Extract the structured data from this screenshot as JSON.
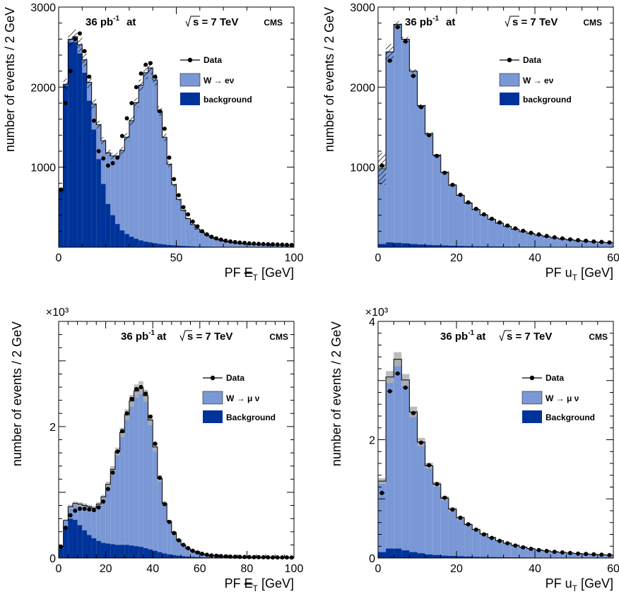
{
  "colors": {
    "signal": "#7b98d6",
    "background": "#003399",
    "data": "#000000",
    "uncertainty_hatch": "#000000",
    "mc_total_band": "#b0b0b0"
  },
  "chart_data": [
    {
      "id": "top-left",
      "type": "bar",
      "label_lumi": "36 pb",
      "label_lumi_sup": "-1",
      "label_at": "at",
      "label_energy": "s = 7 TeV",
      "label_experiment": "CMS",
      "xlabel_prefix": "PF ",
      "xlabel_symbol": "E",
      "xlabel_sub": "T",
      "xlabel_suffix": " [GeV]",
      "ylabel": "number of events / 2 GeV",
      "xlim": [
        0,
        100
      ],
      "ylim": [
        0,
        3000
      ],
      "x_ticks": [
        0,
        50,
        100
      ],
      "y_ticks": [
        1000,
        2000,
        3000
      ],
      "y_multiplier": "",
      "uncertainty_style": "hatch",
      "legend": {
        "data": "Data",
        "signal": "W → eν",
        "background": "background"
      },
      "bin_width": 2,
      "series": [
        {
          "name": "Data",
          "style": "points",
          "values": [
            720,
            1800,
            2200,
            2600,
            2670,
            2450,
            2130,
            1580,
            1200,
            1110,
            1020,
            1050,
            1120,
            1390,
            1610,
            1800,
            2000,
            2170,
            2280,
            2300,
            2130,
            1700,
            1480,
            1120,
            850,
            650,
            500,
            410,
            320,
            260,
            200,
            160,
            130,
            110,
            95,
            82,
            72,
            64,
            58,
            54,
            48,
            45,
            42,
            40,
            38,
            36,
            34,
            32,
            30,
            28
          ]
        },
        {
          "name": "W → eν",
          "style": "stack",
          "values": [
            3,
            16,
            38,
            70,
            110,
            160,
            230,
            320,
            430,
            540,
            640,
            740,
            850,
            1000,
            1210,
            1450,
            1700,
            1940,
            2110,
            2180,
            2040,
            1660,
            1340,
            1010,
            760,
            580,
            445,
            345,
            273,
            219,
            177,
            144,
            119,
            98,
            82,
            69,
            59,
            51,
            45,
            40,
            36,
            33,
            31,
            29,
            27,
            26,
            25,
            24,
            23,
            22
          ]
        },
        {
          "name": "background",
          "style": "stack",
          "values": [
            705,
            2020,
            2560,
            2560,
            2420,
            2180,
            1830,
            1470,
            1100,
            790,
            540,
            400,
            290,
            210,
            165,
            130,
            105,
            85,
            70,
            60,
            50,
            41,
            34,
            28,
            23,
            19,
            16,
            13,
            11,
            9,
            8,
            7,
            6,
            5,
            5,
            4,
            4,
            3,
            3,
            3,
            2,
            2,
            2,
            2,
            2,
            2,
            1,
            1,
            1,
            1
          ]
        },
        {
          "name": "MC uncertainty",
          "style": "band",
          "values": [
            35,
            70,
            90,
            90,
            90,
            80,
            70,
            60,
            50,
            45,
            40,
            40,
            40,
            45,
            50,
            55,
            60,
            70,
            80,
            80,
            70,
            60,
            45,
            35,
            25,
            20,
            15,
            12,
            10,
            8,
            6,
            5,
            4,
            3,
            3,
            3,
            2,
            2,
            2,
            2,
            2,
            2,
            2,
            2,
            2,
            2,
            2,
            2,
            2,
            2
          ]
        }
      ]
    },
    {
      "id": "top-right",
      "type": "bar",
      "label_lumi": "36 pb",
      "label_lumi_sup": "-1",
      "label_at": "at",
      "label_energy": "s = 7 TeV",
      "label_experiment": "CMS",
      "xlabel_prefix": "PF u",
      "xlabel_symbol": "",
      "xlabel_sub": "T",
      "xlabel_suffix": " [GeV]",
      "ylabel": "number of events / 2 GeV",
      "xlim": [
        0,
        60
      ],
      "ylim": [
        0,
        3000
      ],
      "x_ticks": [
        0,
        20,
        40,
        60
      ],
      "y_ticks": [
        1000,
        2000,
        3000
      ],
      "y_multiplier": "",
      "uncertainty_style": "hatch",
      "legend": {
        "data": "Data",
        "signal": "W → eν",
        "background": "background"
      },
      "bin_width": 2,
      "series": [
        {
          "name": "Data",
          "style": "points",
          "values": [
            1020,
            2330,
            2750,
            2570,
            2140,
            1750,
            1400,
            1140,
            930,
            780,
            655,
            560,
            480,
            410,
            355,
            310,
            270,
            235,
            205,
            180,
            160,
            140,
            124,
            110,
            98,
            88,
            80,
            72,
            66,
            60
          ]
        },
        {
          "name": "W → eν",
          "style": "stack",
          "values": [
            940,
            2380,
            2730,
            2550,
            2160,
            1735,
            1390,
            1125,
            915,
            758,
            633,
            537,
            458,
            393,
            338,
            291,
            251,
            217,
            188,
            164,
            144,
            127,
            112,
            99,
            88,
            79,
            71,
            64,
            58,
            53
          ]
        },
        {
          "name": "background",
          "style": "stack",
          "values": [
            40,
            60,
            55,
            48,
            40,
            34,
            29,
            25,
            22,
            19,
            16,
            14,
            12,
            11,
            10,
            9,
            8,
            7,
            6,
            6,
            5,
            5,
            4,
            4,
            4,
            3,
            3,
            3,
            3,
            3
          ]
        },
        {
          "name": "MC uncertainty",
          "style": "band",
          "values": [
            200,
            100,
            40,
            30,
            25,
            20,
            18,
            15,
            12,
            10,
            8,
            7,
            6,
            5,
            5,
            4,
            4,
            3,
            3,
            3,
            3,
            2,
            2,
            2,
            2,
            2,
            2,
            2,
            2,
            2
          ]
        }
      ]
    },
    {
      "id": "bottom-left",
      "type": "bar",
      "label_lumi": "36 pb",
      "label_lumi_sup": "-1",
      "label_at": "at",
      "label_energy": "s = 7 TeV",
      "label_experiment": "CMS",
      "xlabel_prefix": "PF ",
      "xlabel_symbol": "E",
      "xlabel_sub": "T",
      "xlabel_suffix": " [GeV]",
      "ylabel": "number of events / 2 GeV",
      "xlim": [
        0,
        100
      ],
      "ylim": [
        0,
        3.6
      ],
      "x_ticks": [
        0,
        20,
        40,
        60,
        80,
        100
      ],
      "y_ticks": [
        0,
        2
      ],
      "y_multiplier": "×10³",
      "uncertainty_style": "band",
      "legend": {
        "data": "Data",
        "signal": "W → μ ν",
        "background": "Background"
      },
      "bin_width": 2,
      "series": [
        {
          "name": "Data",
          "style": "points",
          "values": [
            0.17,
            0.46,
            0.65,
            0.72,
            0.75,
            0.75,
            0.74,
            0.73,
            0.77,
            0.86,
            1.05,
            1.3,
            1.62,
            1.93,
            2.2,
            2.42,
            2.57,
            2.6,
            2.5,
            2.15,
            1.74,
            1.22,
            0.82,
            0.55,
            0.38,
            0.27,
            0.2,
            0.15,
            0.11,
            0.085,
            0.065,
            0.05,
            0.04,
            0.035,
            0.03,
            0.025,
            0.022,
            0.02,
            0.018,
            0.016,
            0.015,
            0.014,
            0.013,
            0.012,
            0.011,
            0.01,
            0.01,
            0.009,
            0.009,
            0.008
          ]
        },
        {
          "name": "W → μ ν",
          "style": "stack",
          "values": [
            0.02,
            0.09,
            0.18,
            0.25,
            0.32,
            0.38,
            0.43,
            0.46,
            0.56,
            0.7,
            0.9,
            1.14,
            1.42,
            1.71,
            1.98,
            2.2,
            2.36,
            2.42,
            2.32,
            1.97,
            1.58,
            1.12,
            0.76,
            0.5,
            0.34,
            0.24,
            0.17,
            0.12,
            0.09,
            0.065,
            0.05,
            0.04,
            0.032,
            0.026,
            0.022,
            0.018,
            0.016,
            0.014,
            0.012,
            0.011,
            0.01,
            0.009,
            0.008,
            0.007,
            0.007,
            0.006,
            0.006,
            0.005,
            0.005,
            0.005
          ]
        },
        {
          "name": "Background",
          "style": "stack",
          "values": [
            0.15,
            0.48,
            0.6,
            0.58,
            0.5,
            0.42,
            0.35,
            0.3,
            0.26,
            0.23,
            0.22,
            0.21,
            0.2,
            0.2,
            0.2,
            0.19,
            0.18,
            0.17,
            0.15,
            0.13,
            0.11,
            0.09,
            0.07,
            0.055,
            0.045,
            0.035,
            0.028,
            0.022,
            0.018,
            0.014,
            0.011,
            0.009,
            0.007,
            0.006,
            0.005,
            0.004,
            0.004,
            0.003,
            0.003,
            0.003,
            0.002,
            0.002,
            0.002,
            0.002,
            0.002,
            0.002,
            0.002,
            0.001,
            0.001,
            0.001
          ]
        },
        {
          "name": "MC uncertainty",
          "style": "band",
          "values": [
            0.01,
            0.02,
            0.03,
            0.03,
            0.03,
            0.03,
            0.03,
            0.03,
            0.03,
            0.03,
            0.04,
            0.05,
            0.06,
            0.07,
            0.08,
            0.09,
            0.1,
            0.1,
            0.09,
            0.08,
            0.07,
            0.05,
            0.035,
            0.025,
            0.02,
            0.015,
            0.01,
            0.008,
            0.006,
            0.005,
            0.004,
            0.003,
            0.003,
            0.002,
            0.002,
            0.002,
            0.002,
            0.002,
            0.002,
            0.002,
            0.002,
            0.002,
            0.002,
            0.002,
            0.002,
            0.002,
            0.002,
            0.002,
            0.002,
            0.002
          ]
        }
      ]
    },
    {
      "id": "bottom-right",
      "type": "bar",
      "label_lumi": "36 pb",
      "label_lumi_sup": "-1",
      "label_at": "at",
      "label_energy": "s = 7 TeV",
      "label_experiment": "CMS",
      "xlabel_prefix": "PF u",
      "xlabel_symbol": "",
      "xlabel_sub": "T",
      "xlabel_suffix": " [GeV]",
      "ylabel": "number of events / 2 GeV",
      "xlim": [
        0,
        60
      ],
      "ylim": [
        0,
        4
      ],
      "x_ticks": [
        0,
        20,
        40,
        60
      ],
      "y_ticks": [
        0,
        2,
        4
      ],
      "y_multiplier": "×10³",
      "uncertainty_style": "band",
      "legend": {
        "data": "Data",
        "signal": "W → μ ν",
        "background": "Background"
      },
      "bin_width": 2,
      "series": [
        {
          "name": "Data",
          "style": "points",
          "values": [
            1.1,
            2.82,
            3.12,
            2.88,
            2.45,
            1.95,
            1.57,
            1.25,
            1.02,
            0.82,
            0.68,
            0.57,
            0.48,
            0.4,
            0.34,
            0.29,
            0.25,
            0.21,
            0.18,
            0.155,
            0.135,
            0.12,
            0.105,
            0.095,
            0.085,
            0.075,
            0.068,
            0.062,
            0.057,
            0.05
          ]
        },
        {
          "name": "W → μ ν",
          "style": "stack",
          "values": [
            1.2,
            2.9,
            3.2,
            2.88,
            2.37,
            1.88,
            1.5,
            1.2,
            0.97,
            0.79,
            0.65,
            0.54,
            0.46,
            0.39,
            0.33,
            0.28,
            0.24,
            0.205,
            0.175,
            0.15,
            0.13,
            0.115,
            0.1,
            0.09,
            0.08,
            0.072,
            0.065,
            0.058,
            0.052,
            0.047
          ]
        },
        {
          "name": "Background",
          "style": "stack",
          "values": [
            0.1,
            0.16,
            0.16,
            0.13,
            0.1,
            0.08,
            0.06,
            0.05,
            0.04,
            0.035,
            0.03,
            0.025,
            0.02,
            0.018,
            0.016,
            0.014,
            0.012,
            0.011,
            0.01,
            0.009,
            0.008,
            0.007,
            0.006,
            0.006,
            0.005,
            0.005,
            0.004,
            0.004,
            0.004,
            0.004
          ]
        },
        {
          "name": "MC uncertainty",
          "style": "band",
          "values": [
            0.05,
            0.1,
            0.12,
            0.1,
            0.09,
            0.07,
            0.05,
            0.04,
            0.035,
            0.03,
            0.025,
            0.02,
            0.018,
            0.015,
            0.012,
            0.01,
            0.009,
            0.008,
            0.007,
            0.006,
            0.005,
            0.005,
            0.004,
            0.004,
            0.004,
            0.003,
            0.003,
            0.003,
            0.003,
            0.003
          ]
        }
      ]
    }
  ]
}
